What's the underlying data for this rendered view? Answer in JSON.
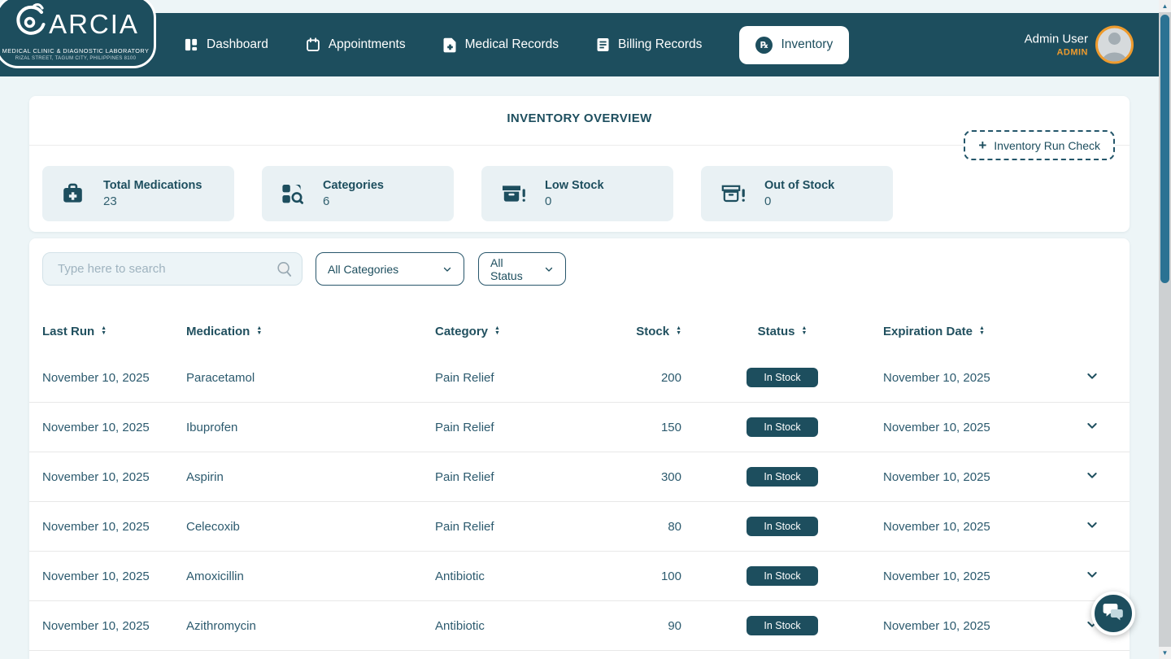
{
  "colors": {
    "accent": "#1d4e5e",
    "orange": "#ee9b2d",
    "stat_card_bg": "#e9f1f4",
    "badge_bg": "#1d4e5e",
    "page_bg": "#edf5f7"
  },
  "brand": {
    "name": "GARCIA",
    "name_rest": "ARCIA",
    "tagline": "MEDICAL CLINIC & DIAGNOSTIC LABORATORY",
    "address": "RIZAL STREET, TAGUM CITY, PHILIPPINES 8100"
  },
  "nav": {
    "items": [
      {
        "label": "Dashboard",
        "icon": "dashboard",
        "active": false
      },
      {
        "label": "Appointments",
        "icon": "calendar",
        "active": false
      },
      {
        "label": "Medical Records",
        "icon": "medical-file",
        "active": false
      },
      {
        "label": "Billing Records",
        "icon": "billing-file",
        "active": false
      },
      {
        "label": "Inventory",
        "icon": "rx",
        "active": true
      }
    ]
  },
  "user": {
    "name": "Admin User",
    "role": "ADMIN"
  },
  "overview": {
    "title": "INVENTORY OVERVIEW",
    "action_label": "Inventory Run Check",
    "stats": [
      {
        "label": "Total Medications",
        "value": "23",
        "icon": "med-bag"
      },
      {
        "label": "Categories",
        "value": "6",
        "icon": "categories"
      },
      {
        "label": "Low Stock",
        "value": "0",
        "icon": "low-stock"
      },
      {
        "label": "Out of Stock",
        "value": "0",
        "icon": "out-stock"
      }
    ]
  },
  "filters": {
    "search_placeholder": "Type here to search",
    "category_value": "All Categories",
    "status_value": "All Status"
  },
  "table": {
    "columns": [
      {
        "key": "last_run",
        "label": "Last Run"
      },
      {
        "key": "medication",
        "label": "Medication"
      },
      {
        "key": "category",
        "label": "Category"
      },
      {
        "key": "stock",
        "label": "Stock"
      },
      {
        "key": "status",
        "label": "Status"
      },
      {
        "key": "expiration",
        "label": "Expiration Date"
      }
    ],
    "rows": [
      {
        "last_run": "November 10, 2025",
        "medication": "Paracetamol",
        "category": "Pain Relief",
        "stock": "200",
        "status": "In Stock",
        "expiration": "November 10, 2025"
      },
      {
        "last_run": "November 10, 2025",
        "medication": "Ibuprofen",
        "category": "Pain Relief",
        "stock": "150",
        "status": "In Stock",
        "expiration": "November 10, 2025"
      },
      {
        "last_run": "November 10, 2025",
        "medication": "Aspirin",
        "category": "Pain Relief",
        "stock": "300",
        "status": "In Stock",
        "expiration": "November 10, 2025"
      },
      {
        "last_run": "November 10, 2025",
        "medication": "Celecoxib",
        "category": "Pain Relief",
        "stock": "80",
        "status": "In Stock",
        "expiration": "November 10, 2025"
      },
      {
        "last_run": "November 10, 2025",
        "medication": "Amoxicillin",
        "category": "Antibiotic",
        "stock": "100",
        "status": "In Stock",
        "expiration": "November 10, 2025"
      },
      {
        "last_run": "November 10, 2025",
        "medication": "Azithromycin",
        "category": "Antibiotic",
        "stock": "90",
        "status": "In Stock",
        "expiration": "November 10, 2025"
      }
    ]
  }
}
